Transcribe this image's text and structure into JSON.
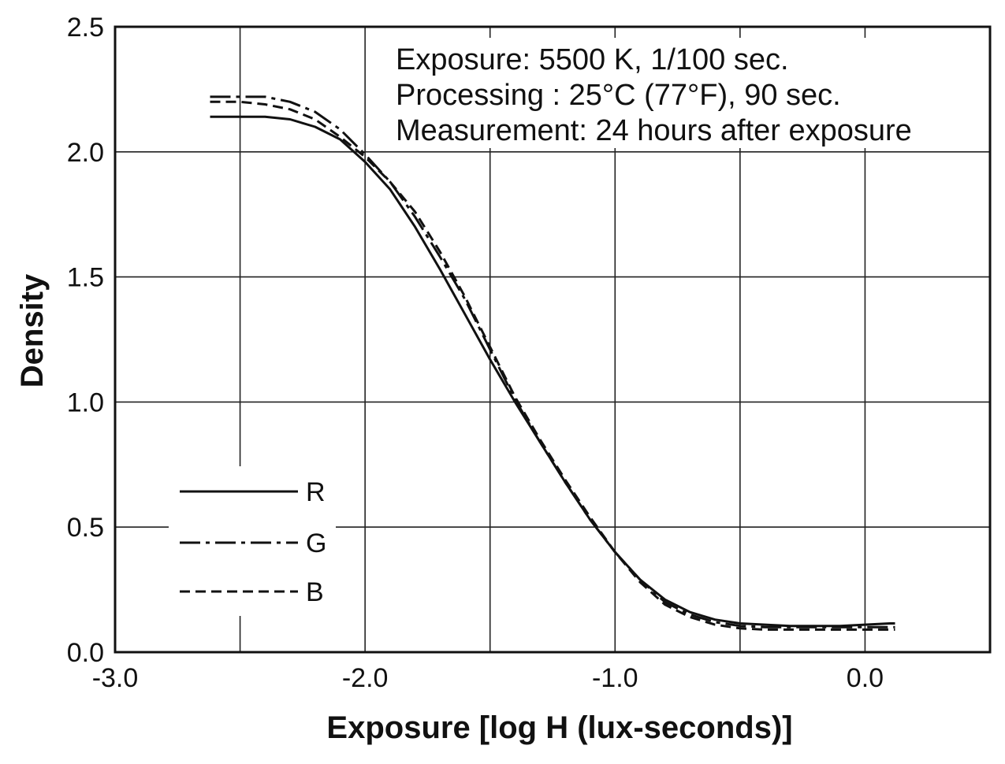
{
  "chart_data": {
    "type": "line",
    "xlabel": "Exposure [log H (lux-seconds)]",
    "ylabel": "Density",
    "xlim": [
      -3.0,
      0.5
    ],
    "ylim": [
      0.0,
      2.5
    ],
    "x_ticks": [
      "-3.0",
      "-2.0",
      "-1.0",
      "0.0"
    ],
    "y_ticks": [
      "0.0",
      "0.5",
      "1.0",
      "1.5",
      "2.0",
      "2.5"
    ],
    "grid": true,
    "legend_position": "bottom-left",
    "annotations": [
      "Exposure: 5500 K, 1/100 sec.",
      "Processing : 25°C (77°F), 90 sec.",
      "Measurement: 24 hours after exposure"
    ],
    "series": [
      {
        "name": "R",
        "line_style": "solid",
        "x": [
          -2.62,
          -2.5,
          -2.4,
          -2.3,
          -2.2,
          -2.1,
          -2.0,
          -1.9,
          -1.8,
          -1.7,
          -1.6,
          -1.5,
          -1.4,
          -1.3,
          -1.2,
          -1.1,
          -1.0,
          -0.9,
          -0.8,
          -0.7,
          -0.6,
          -0.5,
          -0.4,
          -0.3,
          -0.2,
          -0.1,
          0.0,
          0.1,
          0.12
        ],
        "values": [
          2.14,
          2.14,
          2.14,
          2.13,
          2.1,
          2.05,
          1.96,
          1.85,
          1.7,
          1.53,
          1.35,
          1.17,
          1.0,
          0.84,
          0.68,
          0.53,
          0.4,
          0.29,
          0.21,
          0.16,
          0.13,
          0.115,
          0.11,
          0.105,
          0.105,
          0.105,
          0.11,
          0.115,
          0.115
        ]
      },
      {
        "name": "G",
        "line_style": "dash-dot",
        "x": [
          -2.62,
          -2.5,
          -2.4,
          -2.3,
          -2.2,
          -2.1,
          -2.0,
          -1.9,
          -1.8,
          -1.7,
          -1.6,
          -1.5,
          -1.4,
          -1.3,
          -1.2,
          -1.1,
          -1.0,
          -0.9,
          -0.8,
          -0.7,
          -0.6,
          -0.5,
          -0.4,
          -0.3,
          -0.2,
          -0.1,
          0.0,
          0.1,
          0.12
        ],
        "values": [
          2.22,
          2.22,
          2.22,
          2.2,
          2.16,
          2.09,
          1.99,
          1.88,
          1.74,
          1.58,
          1.41,
          1.21,
          1.01,
          0.84,
          0.68,
          0.53,
          0.4,
          0.29,
          0.2,
          0.15,
          0.12,
          0.105,
          0.1,
          0.1,
          0.1,
          0.1,
          0.1,
          0.1,
          0.1
        ]
      },
      {
        "name": "B",
        "line_style": "dashed",
        "x": [
          -2.62,
          -2.5,
          -2.4,
          -2.3,
          -2.2,
          -2.1,
          -2.0,
          -1.9,
          -1.8,
          -1.7,
          -1.6,
          -1.5,
          -1.4,
          -1.3,
          -1.2,
          -1.1,
          -1.0,
          -0.9,
          -0.8,
          -0.7,
          -0.6,
          -0.5,
          -0.4,
          -0.3,
          -0.2,
          -0.1,
          0.0,
          0.1,
          0.12
        ],
        "values": [
          2.2,
          2.2,
          2.19,
          2.17,
          2.13,
          2.06,
          1.98,
          1.88,
          1.76,
          1.6,
          1.42,
          1.22,
          1.02,
          0.85,
          0.69,
          0.54,
          0.4,
          0.28,
          0.19,
          0.14,
          0.11,
          0.095,
          0.09,
          0.09,
          0.09,
          0.09,
          0.09,
          0.09,
          0.09
        ]
      }
    ]
  }
}
